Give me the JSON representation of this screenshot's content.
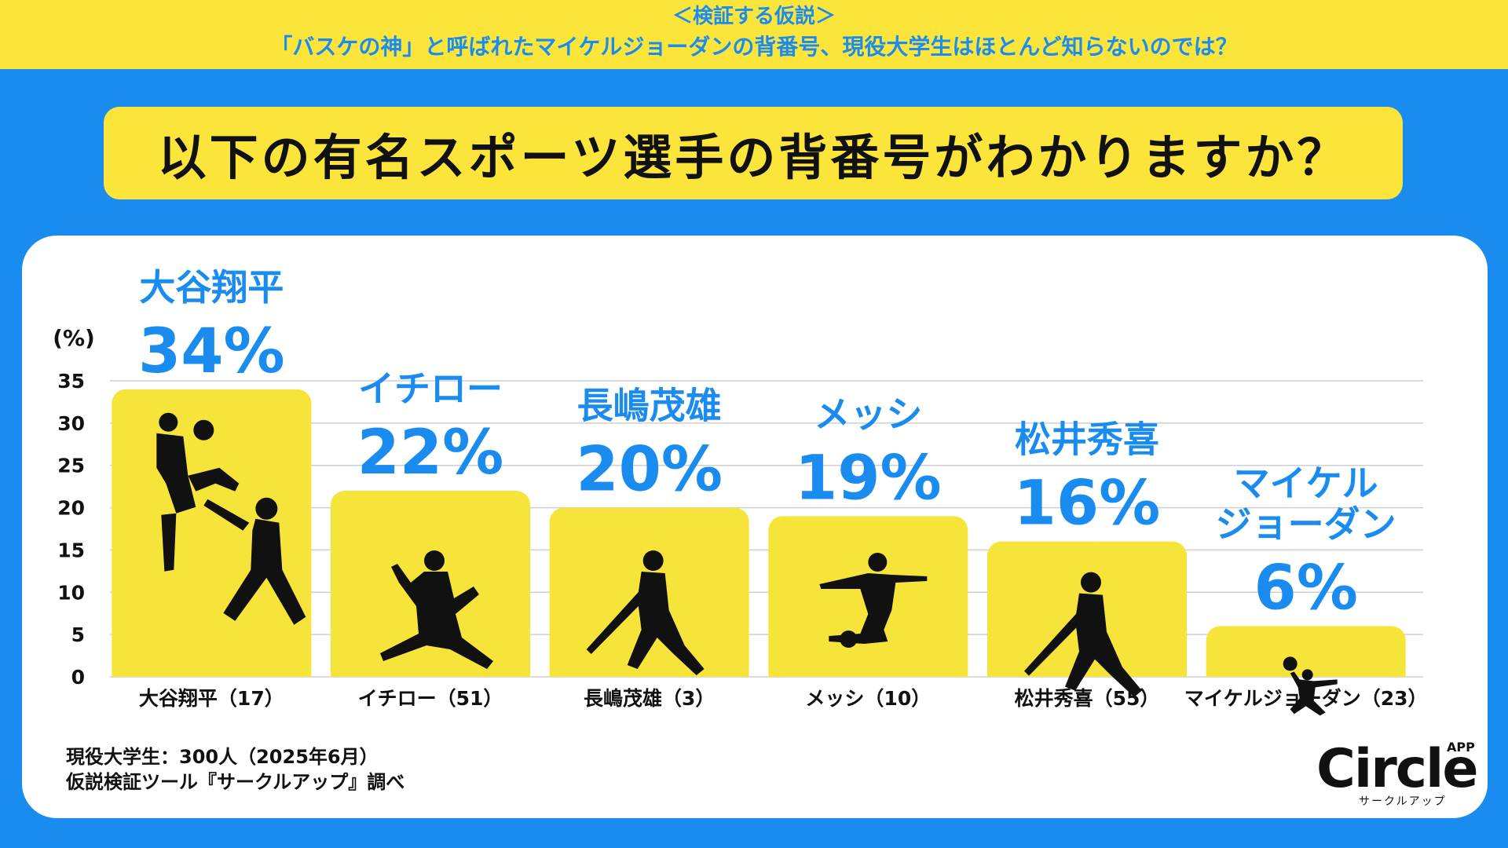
{
  "banner": {
    "line1": "＜検証する仮説＞",
    "line2": "「バスケの神」と呼ばれたマイケルジョーダンの背番号、現役大学生はほとんど知らないのでは？"
  },
  "question": "以下の有名スポーツ選手の背番号がわかりますか？",
  "source": {
    "line1": "現役大学生：300人（2025年6月）",
    "line2": "仮説検証ツール『サークルアップ』調べ"
  },
  "logo": {
    "word": "Circle",
    "superscript": "APP",
    "kana": "サークルアップ"
  },
  "colors": {
    "background": "#1a8cf0",
    "accent": "#fbe53b",
    "bar": "#f7e43a",
    "label": "#1a8cf0",
    "silhouette": "#111111"
  },
  "chart_data": {
    "type": "bar",
    "unit_label": "(%)",
    "ylim": [
      0,
      35
    ],
    "yticks": [
      0,
      5,
      10,
      15,
      20,
      25,
      30,
      35
    ],
    "grid": true,
    "categories": [
      "大谷翔平（17）",
      "イチロー（51）",
      "長嶋茂雄（3）",
      "メッシ（10）",
      "松井秀喜（55）",
      "マイケルジョーダン（23）"
    ],
    "bar_names": [
      [
        "大谷翔平"
      ],
      [
        "イチロー"
      ],
      [
        "長嶋茂雄"
      ],
      [
        "メッシ"
      ],
      [
        "松井秀喜"
      ],
      [
        "マイケル",
        "ジョーダン"
      ]
    ],
    "value_labels": [
      "34%",
      "22%",
      "20%",
      "19%",
      "16%",
      "6%"
    ],
    "values": [
      34,
      22,
      20,
      19,
      16,
      6
    ],
    "icons": [
      "baseball-players-icon",
      "pitcher-icon",
      "batter-icon",
      "soccer-player-icon",
      "batter-icon",
      "basketball-player-icon"
    ]
  }
}
